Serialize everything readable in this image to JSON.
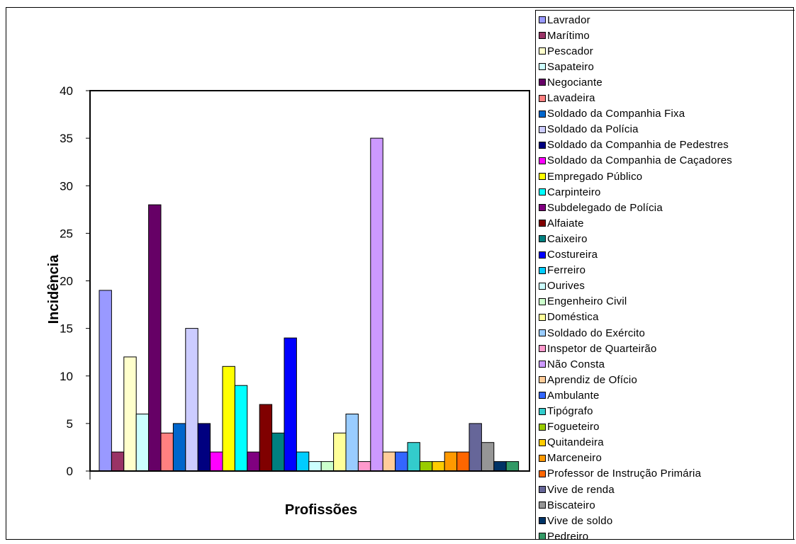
{
  "chart_data": {
    "type": "bar",
    "title": "",
    "xlabel": "Profissões",
    "ylabel": "Incidência",
    "ylim": [
      0,
      40
    ],
    "yticks": [
      0,
      5,
      10,
      15,
      20,
      25,
      30,
      35,
      40
    ],
    "grid": false,
    "legend_position": "right",
    "series": [
      {
        "name": "Lavrador",
        "value": 19,
        "color": "#9999ff"
      },
      {
        "name": "Marítimo",
        "value": 2,
        "color": "#993366"
      },
      {
        "name": "Pescador",
        "value": 12,
        "color": "#ffffcc"
      },
      {
        "name": "Sapateiro",
        "value": 6,
        "color": "#ccffff"
      },
      {
        "name": "Negociante",
        "value": 28,
        "color": "#660066"
      },
      {
        "name": "Lavadeira",
        "value": 4,
        "color": "#ff8080"
      },
      {
        "name": "Soldado da Companhia Fixa",
        "value": 5,
        "color": "#0066cc"
      },
      {
        "name": "Soldado da Polícia",
        "value": 15,
        "color": "#ccccff"
      },
      {
        "name": "Soldado da Companhia de Pedestres",
        "value": 5,
        "color": "#000080"
      },
      {
        "name": "Soldado da Companhia de Caçadores",
        "value": 2,
        "color": "#ff00ff"
      },
      {
        "name": "Empregado Público",
        "value": 11,
        "color": "#ffff00"
      },
      {
        "name": "Carpinteiro",
        "value": 9,
        "color": "#00ffff"
      },
      {
        "name": "Subdelegado de Polícia",
        "value": 2,
        "color": "#800080"
      },
      {
        "name": "Alfaiate",
        "value": 7,
        "color": "#800000"
      },
      {
        "name": "Caixeiro",
        "value": 4,
        "color": "#008080"
      },
      {
        "name": "Costureira",
        "value": 14,
        "color": "#0000ff"
      },
      {
        "name": "Ferreiro",
        "value": 2,
        "color": "#00ccff"
      },
      {
        "name": "Ourives",
        "value": 1,
        "color": "#ccffff"
      },
      {
        "name": "Engenheiro Civil",
        "value": 1,
        "color": "#ccffcc"
      },
      {
        "name": "Doméstica",
        "value": 4,
        "color": "#ffff99"
      },
      {
        "name": "Soldado do Exército",
        "value": 6,
        "color": "#99ccff"
      },
      {
        "name": "Inspetor de Quarteirão",
        "value": 1,
        "color": "#ff99cc"
      },
      {
        "name": "Não Consta",
        "value": 35,
        "color": "#cc99ff"
      },
      {
        "name": "Aprendiz de Ofício",
        "value": 2,
        "color": "#ffcc99"
      },
      {
        "name": "Ambulante",
        "value": 2,
        "color": "#3366ff"
      },
      {
        "name": "Tipógrafo",
        "value": 3,
        "color": "#33cccc"
      },
      {
        "name": "Fogueteiro",
        "value": 1,
        "color": "#99cc00"
      },
      {
        "name": "Quitandeira",
        "value": 1,
        "color": "#ffcc00"
      },
      {
        "name": "Marceneiro",
        "value": 2,
        "color": "#ff9900"
      },
      {
        "name": "Professor de Instrução Primária",
        "value": 2,
        "color": "#ff6600"
      },
      {
        "name": "Vive de renda",
        "value": 5,
        "color": "#666699"
      },
      {
        "name": "Biscateiro",
        "value": 3,
        "color": "#969696"
      },
      {
        "name": "Vive de soldo",
        "value": 1,
        "color": "#003366"
      },
      {
        "name": "Pedreiro",
        "value": 1,
        "color": "#339966"
      }
    ]
  }
}
